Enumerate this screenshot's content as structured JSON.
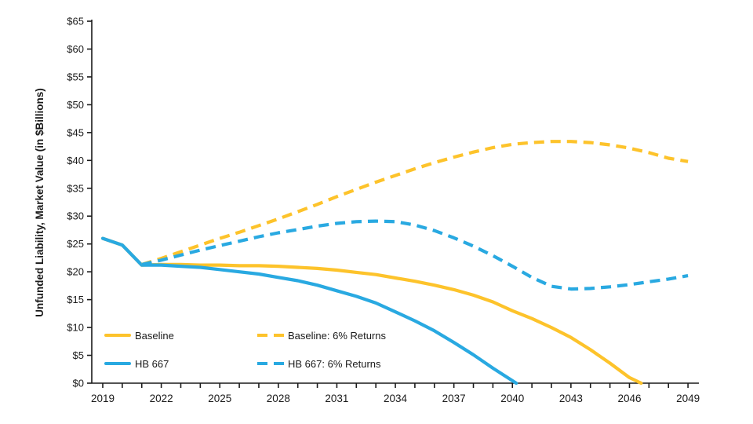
{
  "chart_data": {
    "type": "line",
    "title": "",
    "y_axis": {
      "label": "Unfunded Liability, Market Value (in $Billions)",
      "min": 0,
      "max": 65,
      "tick_step": 5,
      "tick_prefix": "$"
    },
    "x_axis": {
      "min": 2019,
      "max": 2049,
      "label_step": 3,
      "minor_tick_step": 1,
      "tick_labels": [
        "2019",
        "2022",
        "2025",
        "2028",
        "2031",
        "2034",
        "2037",
        "2040",
        "2043",
        "2046",
        "2049"
      ]
    },
    "axis_color": "#1a1a1a",
    "text_color": "#1a1a1a",
    "grid": "off",
    "legend_position": "inside-bottom-left",
    "series": [
      {
        "name": "Baseline",
        "color": "#FDC32B",
        "style": "solid",
        "points": [
          [
            2019,
            26.0
          ],
          [
            2020,
            24.8
          ],
          [
            2021,
            21.2
          ],
          [
            2022,
            21.3
          ],
          [
            2023,
            21.3
          ],
          [
            2024,
            21.2
          ],
          [
            2025,
            21.2
          ],
          [
            2026,
            21.1
          ],
          [
            2027,
            21.1
          ],
          [
            2028,
            21.0
          ],
          [
            2029,
            20.8
          ],
          [
            2030,
            20.6
          ],
          [
            2031,
            20.3
          ],
          [
            2032,
            19.9
          ],
          [
            2033,
            19.5
          ],
          [
            2034,
            18.9
          ],
          [
            2035,
            18.3
          ],
          [
            2036,
            17.6
          ],
          [
            2037,
            16.8
          ],
          [
            2038,
            15.8
          ],
          [
            2039,
            14.6
          ],
          [
            2040,
            13.0
          ],
          [
            2041,
            11.6
          ],
          [
            2042,
            10.0
          ],
          [
            2043,
            8.2
          ],
          [
            2044,
            6.0
          ],
          [
            2045,
            3.6
          ],
          [
            2046,
            1.0
          ],
          [
            2046.6,
            0
          ]
        ]
      },
      {
        "name": "HB 667",
        "color": "#29A9E1",
        "style": "solid",
        "points": [
          [
            2019,
            26.0
          ],
          [
            2020,
            24.8
          ],
          [
            2021,
            21.2
          ],
          [
            2022,
            21.2
          ],
          [
            2023,
            21.0
          ],
          [
            2024,
            20.8
          ],
          [
            2025,
            20.4
          ],
          [
            2026,
            20.0
          ],
          [
            2027,
            19.6
          ],
          [
            2028,
            19.0
          ],
          [
            2029,
            18.4
          ],
          [
            2030,
            17.6
          ],
          [
            2031,
            16.6
          ],
          [
            2032,
            15.6
          ],
          [
            2033,
            14.4
          ],
          [
            2034,
            12.8
          ],
          [
            2035,
            11.2
          ],
          [
            2036,
            9.4
          ],
          [
            2037,
            7.3
          ],
          [
            2038,
            5.1
          ],
          [
            2039,
            2.7
          ],
          [
            2040.2,
            0
          ]
        ]
      },
      {
        "name": "Baseline: 6% Returns",
        "color": "#FDC32B",
        "style": "dashed",
        "points": [
          [
            2021,
            21.3
          ],
          [
            2022,
            22.4
          ],
          [
            2023,
            23.6
          ],
          [
            2024,
            24.8
          ],
          [
            2025,
            26.0
          ],
          [
            2026,
            27.1
          ],
          [
            2027,
            28.3
          ],
          [
            2028,
            29.5
          ],
          [
            2029,
            30.8
          ],
          [
            2030,
            32.1
          ],
          [
            2031,
            33.5
          ],
          [
            2032,
            34.8
          ],
          [
            2033,
            36.1
          ],
          [
            2034,
            37.3
          ],
          [
            2035,
            38.5
          ],
          [
            2036,
            39.6
          ],
          [
            2037,
            40.6
          ],
          [
            2038,
            41.5
          ],
          [
            2039,
            42.3
          ],
          [
            2040,
            42.9
          ],
          [
            2041,
            43.2
          ],
          [
            2042,
            43.4
          ],
          [
            2043,
            43.4
          ],
          [
            2044,
            43.2
          ],
          [
            2045,
            42.8
          ],
          [
            2046,
            42.2
          ],
          [
            2047,
            41.4
          ],
          [
            2048,
            40.4
          ],
          [
            2049,
            39.8
          ]
        ]
      },
      {
        "name": "HB 667: 6% Returns",
        "color": "#29A9E1",
        "style": "dashed",
        "points": [
          [
            2021,
            21.3
          ],
          [
            2022,
            22.1
          ],
          [
            2023,
            23.0
          ],
          [
            2024,
            23.9
          ],
          [
            2025,
            24.7
          ],
          [
            2026,
            25.5
          ],
          [
            2027,
            26.3
          ],
          [
            2028,
            27.0
          ],
          [
            2029,
            27.6
          ],
          [
            2030,
            28.2
          ],
          [
            2031,
            28.7
          ],
          [
            2032,
            29.0
          ],
          [
            2033,
            29.1
          ],
          [
            2034,
            29.0
          ],
          [
            2035,
            28.4
          ],
          [
            2036,
            27.4
          ],
          [
            2037,
            26.1
          ],
          [
            2038,
            24.6
          ],
          [
            2039,
            22.9
          ],
          [
            2040,
            21.0
          ],
          [
            2041,
            19.0
          ],
          [
            2042,
            17.4
          ],
          [
            2043,
            16.9
          ],
          [
            2044,
            17.0
          ],
          [
            2045,
            17.3
          ],
          [
            2046,
            17.7
          ],
          [
            2047,
            18.2
          ],
          [
            2048,
            18.7
          ],
          [
            2049,
            19.3
          ]
        ]
      }
    ]
  }
}
